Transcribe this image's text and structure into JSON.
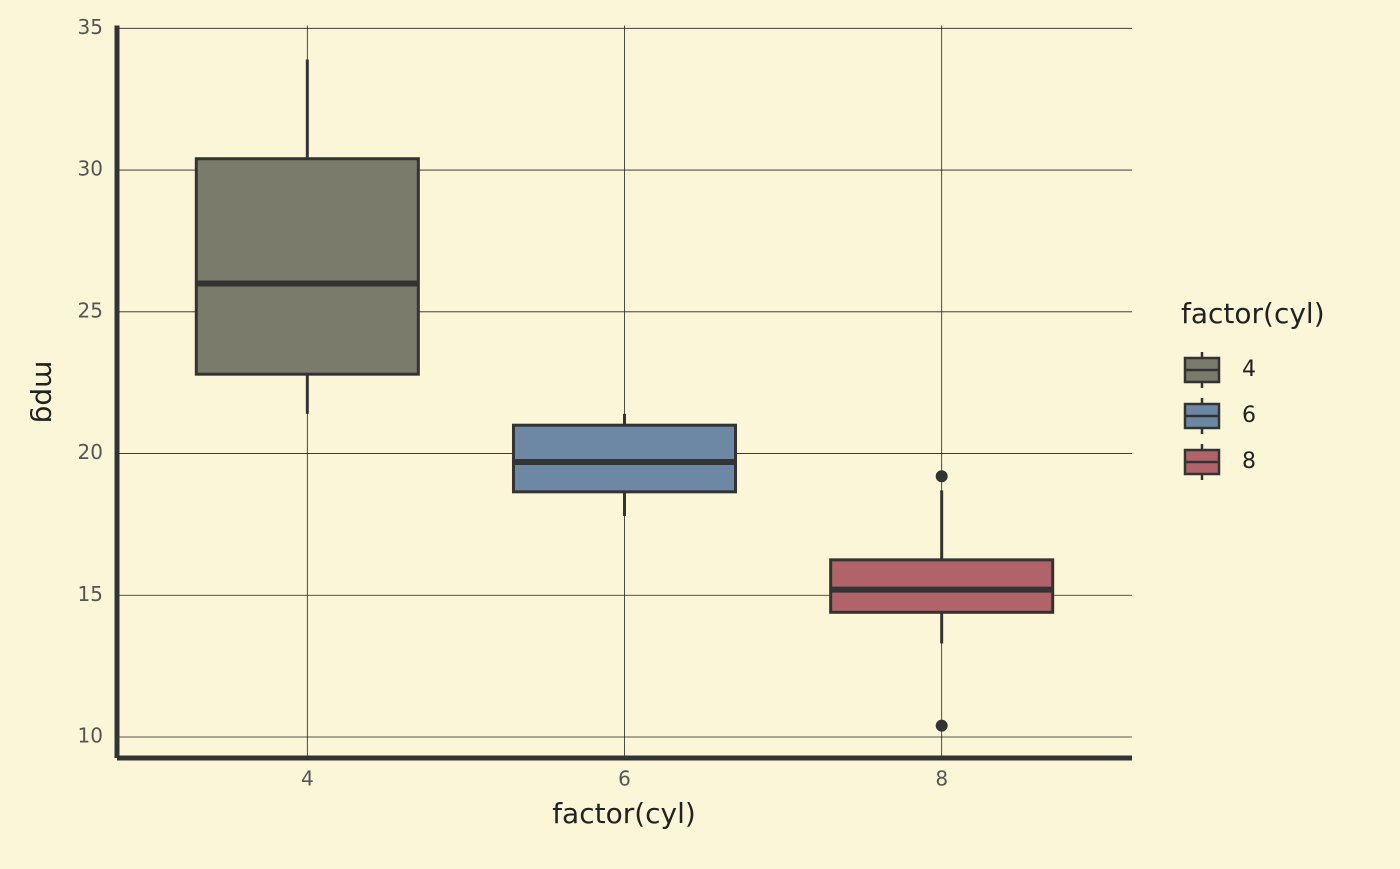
{
  "chart_data": {
    "type": "boxplot",
    "x_label": "factor(cyl)",
    "y_label": "mpg",
    "legend_title": "factor(cyl)",
    "categories": [
      "4",
      "6",
      "8"
    ],
    "boxes": [
      {
        "min": 21.4,
        "q1": 22.8,
        "median": 26.0,
        "q3": 30.4,
        "max": 33.9,
        "outliers": [],
        "color": "#7b7b6c"
      },
      {
        "min": 17.8,
        "q1": 18.65,
        "median": 19.7,
        "q3": 21.0,
        "max": 21.4,
        "outliers": [],
        "color": "#6d88a4"
      },
      {
        "min": 13.3,
        "q1": 14.4,
        "median": 15.2,
        "q3": 16.25,
        "max": 18.7,
        "outliers": [
          19.2,
          10.4
        ],
        "color": "#b0646a"
      }
    ],
    "ylim": [
      9.26,
      35.1
    ],
    "yticks": [
      10,
      15,
      20,
      25,
      30,
      35
    ],
    "grid": true,
    "legend_position": "right"
  }
}
